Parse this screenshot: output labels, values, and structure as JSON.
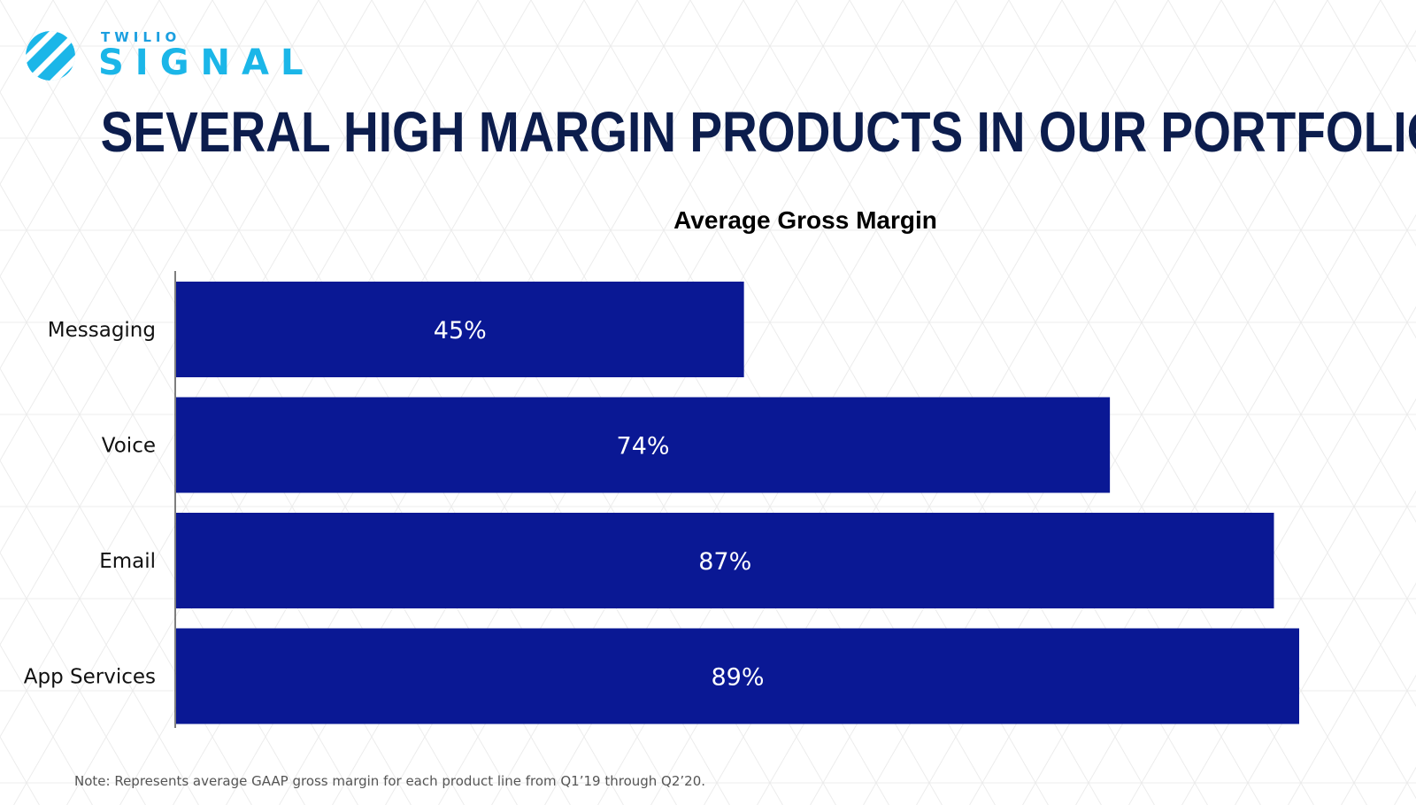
{
  "logo": {
    "top_text": "TWILIO",
    "main_text": "SIGNAL",
    "icon": "twilio-signal-slash-icon",
    "color": "#1bb6e8"
  },
  "slide": {
    "title": "SEVERAL HIGH MARGIN PRODUCTS IN OUR PORTFOLIO",
    "footnote": "Note: Represents average GAAP gross margin for each product line from Q1’19 through Q2’20."
  },
  "colors": {
    "bar": "#0a1894",
    "title": "#0c1d4d",
    "axis": "#555555"
  },
  "chart_data": {
    "type": "bar",
    "orientation": "horizontal",
    "title": "Average Gross Margin",
    "categories": [
      "Messaging",
      "Voice",
      "Email",
      "App Services"
    ],
    "values": [
      45,
      74,
      87,
      89
    ],
    "data_labels": [
      "45%",
      "74%",
      "87%",
      "89%"
    ],
    "unit": "%",
    "xlim": [
      0,
      89
    ],
    "grid": false,
    "legend": "none",
    "xlabel": "",
    "ylabel": ""
  }
}
